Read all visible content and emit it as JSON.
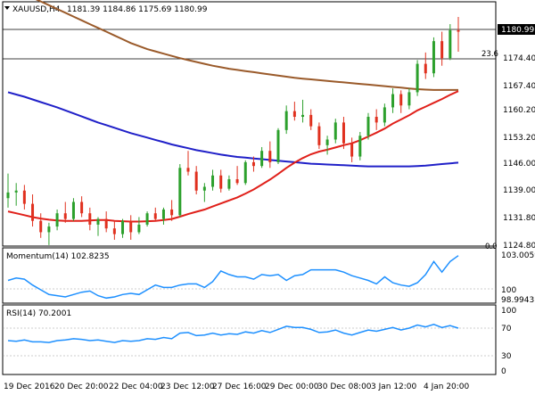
{
  "header": {
    "symbol_info": "XAUUSD,H4",
    "ohlc": "1181.39 1184.86 1175.69 1180.99"
  },
  "price_panel": {
    "current_price_label": "1180.99",
    "fib_label": "23.6",
    "zero_label": "0.0",
    "y_ticks": [
      "1181.60",
      "1174.40",
      "1167.40",
      "1160.20",
      "1153.20",
      "1146.00",
      "1139.00",
      "1131.80",
      "1124.80"
    ]
  },
  "momentum_panel": {
    "title": "Momentum(14) 102.8235",
    "top_label": "103.0059",
    "mid_label": "100",
    "bottom_label": "98.9943"
  },
  "rsi_panel": {
    "title": "RSI(14) 70.2001",
    "ticks": [
      "100",
      "70",
      "30",
      "0"
    ]
  },
  "x_axis": {
    "labels": [
      "19 Dec 2016",
      "20 Dec 20:00",
      "22 Dec 04:00",
      "23 Dec 12:00",
      "27 Dec 16:00",
      "29 Dec 00:00",
      "30 Dec 08:00",
      "3 Jan 12:00",
      "4 Jan 20:00"
    ]
  },
  "colors": {
    "bull": "#2ca02c",
    "bear": "#e0301e",
    "sma_fast": "#e0201a",
    "sma_mid": "#9a5a2a",
    "sma_slow": "#2020c8",
    "indicator": "#1e90ff"
  },
  "chart_data": {
    "type": "candlestick",
    "candles": [
      [
        1137.0,
        1143.5,
        1134.5,
        1138.5
      ],
      [
        1138.5,
        1141.0,
        1135.0,
        1139.0
      ],
      [
        1139.0,
        1140.5,
        1134.0,
        1135.5
      ],
      [
        1135.5,
        1138.0,
        1129.5,
        1131.0
      ],
      [
        1131.0,
        1133.0,
        1126.5,
        1128.0
      ],
      [
        1128.0,
        1130.5,
        1124.6,
        1129.5
      ],
      [
        1129.5,
        1134.0,
        1128.5,
        1133.0
      ],
      [
        1133.0,
        1136.0,
        1130.5,
        1131.5
      ],
      [
        1131.5,
        1137.0,
        1131.0,
        1136.0
      ],
      [
        1136.0,
        1137.5,
        1132.0,
        1133.0
      ],
      [
        1133.0,
        1134.5,
        1128.5,
        1130.0
      ],
      [
        1130.0,
        1132.0,
        1127.0,
        1131.5
      ],
      [
        1131.5,
        1133.5,
        1128.0,
        1129.0
      ],
      [
        1129.0,
        1131.0,
        1126.0,
        1127.5
      ],
      [
        1127.5,
        1131.5,
        1126.5,
        1131.0
      ],
      [
        1131.0,
        1132.5,
        1126.0,
        1128.0
      ],
      [
        1128.0,
        1132.0,
        1127.5,
        1130.0
      ],
      [
        1130.0,
        1133.5,
        1129.5,
        1133.0
      ],
      [
        1133.0,
        1134.5,
        1131.0,
        1131.5
      ],
      [
        1131.5,
        1134.5,
        1130.0,
        1134.0
      ],
      [
        1134.0,
        1136.5,
        1131.0,
        1132.5
      ],
      [
        1132.5,
        1146.0,
        1132.0,
        1145.0
      ],
      [
        1145.0,
        1149.5,
        1143.0,
        1144.0
      ],
      [
        1144.0,
        1145.5,
        1138.0,
        1139.0
      ],
      [
        1139.0,
        1141.0,
        1136.0,
        1140.0
      ],
      [
        1140.0,
        1144.5,
        1139.0,
        1143.0
      ],
      [
        1143.0,
        1144.5,
        1138.5,
        1139.5
      ],
      [
        1139.5,
        1143.0,
        1139.0,
        1142.0
      ],
      [
        1142.0,
        1145.5,
        1140.5,
        1141.0
      ],
      [
        1141.0,
        1147.0,
        1140.5,
        1146.5
      ],
      [
        1146.5,
        1148.0,
        1144.0,
        1145.5
      ],
      [
        1145.5,
        1150.5,
        1145.0,
        1149.5
      ],
      [
        1149.5,
        1152.0,
        1145.0,
        1146.5
      ],
      [
        1146.5,
        1155.5,
        1146.0,
        1155.0
      ],
      [
        1155.0,
        1161.5,
        1154.0,
        1160.0
      ],
      [
        1160.0,
        1162.5,
        1157.5,
        1158.5
      ],
      [
        1158.5,
        1163.0,
        1157.0,
        1159.0
      ],
      [
        1159.0,
        1160.5,
        1155.0,
        1156.0
      ],
      [
        1156.0,
        1157.0,
        1150.0,
        1151.0
      ],
      [
        1151.0,
        1153.5,
        1148.5,
        1152.5
      ],
      [
        1152.5,
        1158.0,
        1151.5,
        1157.0
      ],
      [
        1157.0,
        1158.5,
        1150.0,
        1151.5
      ],
      [
        1151.5,
        1153.0,
        1146.5,
        1148.0
      ],
      [
        1148.0,
        1154.5,
        1147.0,
        1153.5
      ],
      [
        1153.5,
        1159.5,
        1152.5,
        1158.5
      ],
      [
        1158.5,
        1160.5,
        1155.0,
        1157.0
      ],
      [
        1157.0,
        1162.0,
        1156.0,
        1161.0
      ],
      [
        1161.0,
        1166.0,
        1159.5,
        1164.5
      ],
      [
        1164.5,
        1165.5,
        1159.5,
        1161.5
      ],
      [
        1161.5,
        1166.0,
        1160.5,
        1165.0
      ],
      [
        1165.0,
        1173.5,
        1164.0,
        1172.5
      ],
      [
        1172.5,
        1175.5,
        1168.5,
        1170.0
      ],
      [
        1170.0,
        1179.5,
        1169.0,
        1178.5
      ],
      [
        1178.5,
        1181.0,
        1172.0,
        1174.0
      ],
      [
        1174.0,
        1183.0,
        1173.5,
        1181.4
      ],
      [
        1181.4,
        1184.9,
        1175.7,
        1181.0
      ]
    ],
    "sma_fast": [
      1133.5,
      1133.0,
      1132.5,
      1132.0,
      1131.6,
      1131.3,
      1131.1,
      1131.0,
      1131.0,
      1131.0,
      1131.1,
      1131.2,
      1131.2,
      1131.0,
      1130.9,
      1130.8,
      1130.8,
      1130.9,
      1131.0,
      1131.2,
      1131.5,
      1132.1,
      1132.8,
      1133.4,
      1134.0,
      1134.8,
      1135.6,
      1136.4,
      1137.2,
      1138.2,
      1139.3,
      1140.6,
      1141.9,
      1143.4,
      1145.0,
      1146.4,
      1147.6,
      1148.6,
      1149.3,
      1149.8,
      1150.4,
      1151.0,
      1151.5,
      1152.3,
      1153.3,
      1154.3,
      1155.4,
      1156.7,
      1157.8,
      1158.9,
      1160.2,
      1161.2,
      1162.2,
      1163.2,
      1164.3,
      1165.3
    ],
    "sma_mid": [
      1193.0,
      1192.0,
      1191.0,
      1190.0,
      1189.0,
      1188.0,
      1187.0,
      1186.0,
      1185.0,
      1184.0,
      1183.0,
      1182.0,
      1181.0,
      1180.0,
      1179.0,
      1178.0,
      1177.2,
      1176.4,
      1175.8,
      1175.2,
      1174.6,
      1174.0,
      1173.5,
      1173.0,
      1172.5,
      1172.0,
      1171.6,
      1171.2,
      1170.9,
      1170.6,
      1170.3,
      1170.0,
      1169.7,
      1169.4,
      1169.1,
      1168.8,
      1168.6,
      1168.4,
      1168.2,
      1168.0,
      1167.8,
      1167.6,
      1167.4,
      1167.2,
      1167.0,
      1166.8,
      1166.6,
      1166.4,
      1166.2,
      1166.0,
      1165.8,
      1165.7,
      1165.6,
      1165.6,
      1165.6,
      1165.6
    ],
    "sma_slow": [
      1165.0,
      1164.4,
      1163.8,
      1163.1,
      1162.4,
      1161.7,
      1161.0,
      1160.2,
      1159.4,
      1158.6,
      1157.8,
      1157.0,
      1156.3,
      1155.6,
      1154.9,
      1154.2,
      1153.6,
      1153.0,
      1152.4,
      1151.8,
      1151.2,
      1150.7,
      1150.2,
      1149.7,
      1149.3,
      1148.9,
      1148.5,
      1148.2,
      1147.9,
      1147.7,
      1147.5,
      1147.3,
      1147.1,
      1146.9,
      1146.7,
      1146.5,
      1146.3,
      1146.1,
      1146.0,
      1145.9,
      1145.8,
      1145.7,
      1145.6,
      1145.5,
      1145.4,
      1145.4,
      1145.4,
      1145.4,
      1145.4,
      1145.4,
      1145.5,
      1145.6,
      1145.8,
      1146.0,
      1146.2,
      1146.4
    ],
    "momentum": [
      100.7,
      100.9,
      100.8,
      100.3,
      99.9,
      99.5,
      99.4,
      99.3,
      99.5,
      99.7,
      99.8,
      99.4,
      99.2,
      99.3,
      99.5,
      99.6,
      99.5,
      99.9,
      100.3,
      100.1,
      100.1,
      100.3,
      100.4,
      100.4,
      100.1,
      100.6,
      101.5,
      101.2,
      101.0,
      101.0,
      100.8,
      101.2,
      101.1,
      101.2,
      100.7,
      101.1,
      101.2,
      101.6,
      101.6,
      101.6,
      101.6,
      101.4,
      101.1,
      100.9,
      100.7,
      100.4,
      101.0,
      100.5,
      100.3,
      100.2,
      100.5,
      101.2,
      102.3,
      101.4,
      102.3,
      102.8
    ],
    "rsi": [
      50,
      49,
      51,
      48,
      48,
      47,
      50,
      51,
      53,
      52,
      50,
      51,
      49,
      47,
      50,
      49,
      50,
      53,
      52,
      55,
      53,
      62,
      63,
      58,
      59,
      62,
      59,
      61,
      60,
      64,
      62,
      66,
      63,
      68,
      73,
      71,
      71,
      68,
      63,
      64,
      67,
      62,
      59,
      63,
      67,
      65,
      68,
      71,
      67,
      70,
      75,
      72,
      76,
      71,
      74,
      70
    ]
  }
}
